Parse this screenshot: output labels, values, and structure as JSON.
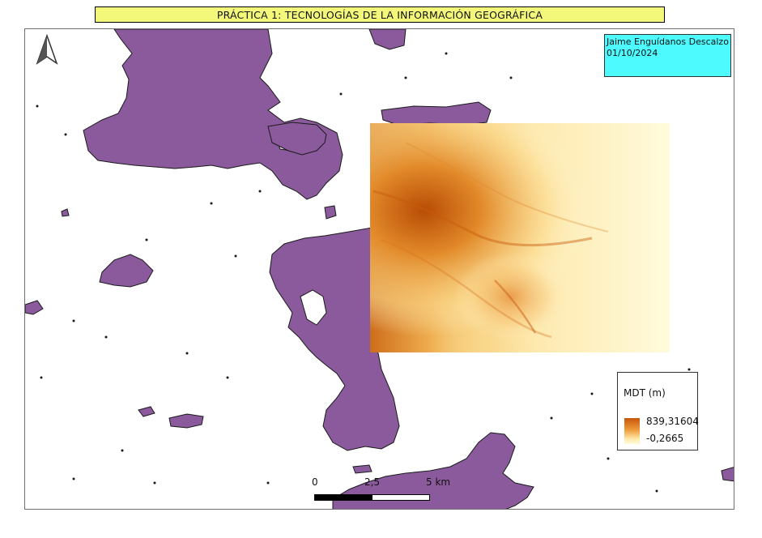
{
  "title": "PRÁCTICA 1: TECNOLOGÍAS DE LA INFORMACIÓN GEOGRÁFICA",
  "author": {
    "name": "Jaime Enguídanos Descalzo",
    "date": "01/10/2024"
  },
  "legend": {
    "title": "MDT (m)",
    "max_value": "839,31604",
    "min_value": "-0,2665",
    "ramp_colors": [
      "#c8560a",
      "#ee9a3a",
      "#ffe9a8",
      "#fffbdc"
    ]
  },
  "scalebar": {
    "labels": [
      "0",
      "2,5",
      "5 km"
    ]
  },
  "colors": {
    "title_bg": "#f4f87a",
    "author_bg": "#4dfbff",
    "land_fill": "#8a5a9c",
    "dem_high": "#c8560a",
    "dem_low": "#fffbdc"
  },
  "icons": {
    "north_arrow": "north-arrow-icon"
  }
}
